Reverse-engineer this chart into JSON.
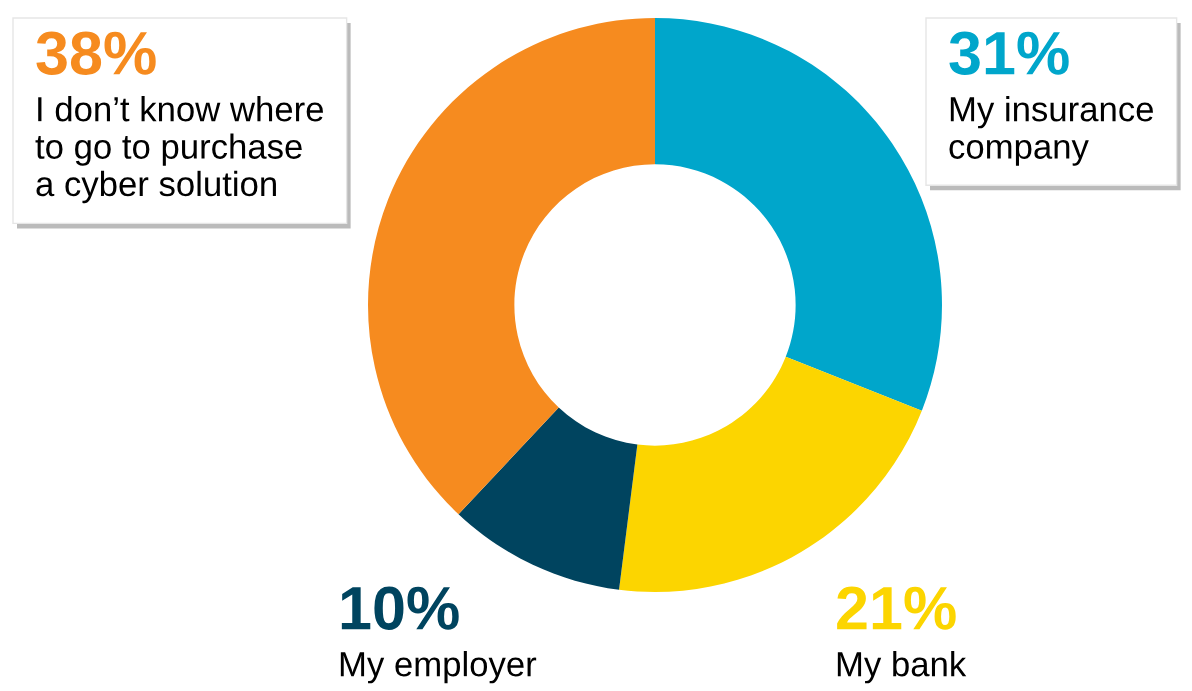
{
  "chart_data": {
    "type": "donut",
    "categories": [
      "My insurance\ncompany",
      "My bank",
      "My employer",
      "I don’t know where\nto go to purchase\na cyber solution"
    ],
    "values": [
      31,
      21,
      10,
      38
    ],
    "value_labels": [
      "31%",
      "21%",
      "10%",
      "38%"
    ],
    "colors": [
      "#00a6cb",
      "#fcd500",
      "#00445f",
      "#f68b1f"
    ]
  }
}
